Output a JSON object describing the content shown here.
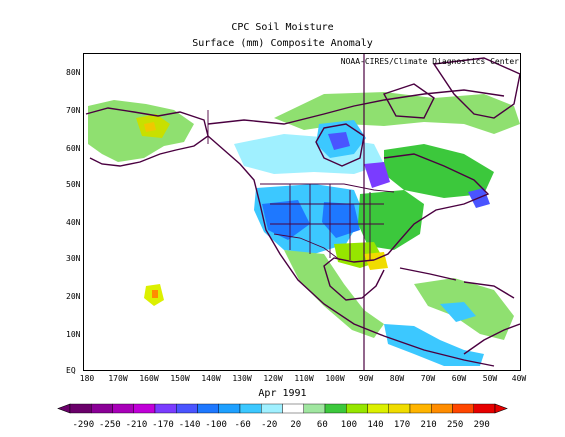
{
  "title": "CPC Soil Moisture",
  "subtitle": "Surface  (mm) Composite Anomaly",
  "credit": "NOAA-CIRES/Climate Diagnostics Center",
  "date": "Apr 1991",
  "lat_labels": [
    "80N",
    "70N",
    "60N",
    "50N",
    "40N",
    "30N",
    "20N",
    "10N",
    "EQ"
  ],
  "lon_labels": [
    "180",
    "170W",
    "160W",
    "150W",
    "140W",
    "130W",
    "120W",
    "110W",
    "100W",
    "90W",
    "80W",
    "70W",
    "60W",
    "50W",
    "40W"
  ],
  "colorbar": {
    "labels": [
      "-290",
      "-250",
      "-210",
      "-170",
      "-140",
      "-100",
      "-60",
      "-20",
      "20",
      "60",
      "100",
      "140",
      "170",
      "210",
      "250",
      "290"
    ],
    "colors": [
      "#6a006a",
      "#8a0096",
      "#a800b8",
      "#c000d8",
      "#7a3cff",
      "#4a54ff",
      "#1e78ff",
      "#1ea0ff",
      "#3cc8ff",
      "#a0f0ff",
      "#ffffff",
      "#a0e6a0",
      "#3cc83c",
      "#96e600",
      "#dcf000",
      "#f0dc00",
      "#ffb400",
      "#ff8c00",
      "#ff4600",
      "#e60000"
    ]
  }
}
